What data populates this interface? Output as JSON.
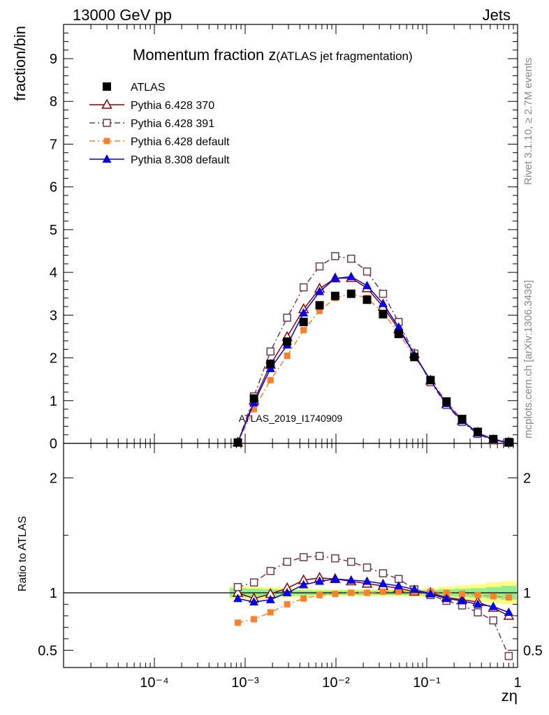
{
  "header": {
    "left": "13000 GeV pp",
    "right": "Jets"
  },
  "side_labels": {
    "rivet": "Rivet 3.1.10, ≥ 2.7M events",
    "mcplots": "mcplots.cern.ch [arXiv:1306.3436]"
  },
  "colors": {
    "atlas": "#000000",
    "p370": "#8b0000",
    "p391": "#6b3a4e",
    "p6def": "#ff7f2a",
    "p8def": "#0000ee",
    "band_inner": "#90ee90",
    "band_outer": "#ffff80"
  },
  "chart_data": {
    "type": "line",
    "x_scale": "log",
    "xlim": [
      1e-05,
      1
    ],
    "xlabel": "zη",
    "x_ticks": [
      {
        "value": 0.0001,
        "label": "10⁻⁴"
      },
      {
        "value": 0.001,
        "label": "10⁻³"
      },
      {
        "value": 0.01,
        "label": "10⁻²"
      },
      {
        "value": 0.1,
        "label": "10⁻¹"
      },
      {
        "value": 1,
        "label": "1"
      }
    ],
    "main": {
      "title": "Momentum fraction z",
      "title_sub": "(ATLAS jet fragmentation)",
      "ylabel": "fraction/bin",
      "ylim": [
        0,
        9.8
      ],
      "y_ticks": [
        0,
        1,
        2,
        3,
        4,
        5,
        6,
        7,
        8,
        9
      ],
      "watermark": "ATLAS_2019_I1740909"
    },
    "ratio": {
      "ylabel": "Ratio to ATLAS",
      "ylim": [
        0.35,
        2.3
      ],
      "y_ticks": [
        {
          "value": 0.5,
          "label": "0.5"
        },
        {
          "value": 1,
          "label": "1"
        },
        {
          "value": 2,
          "label": "2"
        }
      ]
    },
    "x": [
      0.00083,
      0.00125,
      0.0019,
      0.0029,
      0.0044,
      0.0066,
      0.0098,
      0.0147,
      0.022,
      0.033,
      0.049,
      0.073,
      0.11,
      0.165,
      0.245,
      0.365,
      0.54,
      0.8
    ],
    "series": [
      {
        "name": "ATLAS",
        "key": "atlas",
        "marker": "filled-square",
        "line": "none",
        "values": [
          0.02,
          1.05,
          1.86,
          2.38,
          2.84,
          3.23,
          3.45,
          3.5,
          3.36,
          3.02,
          2.56,
          2.02,
          1.48,
          0.98,
          0.57,
          0.27,
          0.1,
          0.03
        ],
        "ratio": [
          1.0,
          1.0,
          1.0,
          1.0,
          1.0,
          1.0,
          1.0,
          1.0,
          1.0,
          1.0,
          1.0,
          1.0,
          1.0,
          1.0,
          1.0,
          1.0,
          1.0,
          1.0
        ],
        "band_inner": [
          0.04,
          0.035,
          0.03,
          0.025,
          0.022,
          0.02,
          0.02,
          0.02,
          0.02,
          0.02,
          0.02,
          0.02,
          0.025,
          0.03,
          0.035,
          0.04,
          0.05,
          0.06
        ],
        "band_outer": [
          0.06,
          0.055,
          0.05,
          0.045,
          0.04,
          0.035,
          0.03,
          0.03,
          0.03,
          0.03,
          0.03,
          0.035,
          0.04,
          0.055,
          0.065,
          0.075,
          0.09,
          0.1
        ]
      },
      {
        "name": "Pythia 6.428 370",
        "key": "p370",
        "marker": "open-triangle",
        "line": "solid",
        "values": [
          0.02,
          1.0,
          1.84,
          2.49,
          3.14,
          3.62,
          3.86,
          3.87,
          3.63,
          3.2,
          2.67,
          2.09,
          1.47,
          0.92,
          0.53,
          0.25,
          0.08,
          0.02
        ],
        "ratio": [
          1.0,
          0.95,
          0.99,
          1.04,
          1.11,
          1.13,
          1.12,
          1.1,
          1.08,
          1.06,
          1.04,
          1.01,
          1.0,
          0.96,
          0.94,
          0.92,
          0.87,
          0.8
        ]
      },
      {
        "name": "Pythia 6.428 391",
        "key": "p391",
        "marker": "open-square",
        "line": "dashdot",
        "values": [
          0.02,
          1.1,
          2.15,
          2.94,
          3.65,
          4.14,
          4.38,
          4.32,
          4.02,
          3.5,
          2.84,
          2.1,
          1.43,
          0.9,
          0.5,
          0.22,
          0.07,
          0.013
        ],
        "ratio": [
          1.05,
          1.09,
          1.19,
          1.27,
          1.31,
          1.32,
          1.3,
          1.27,
          1.22,
          1.17,
          1.12,
          1.03,
          0.98,
          0.93,
          0.89,
          0.83,
          0.76,
          0.45
        ]
      },
      {
        "name": "Pythia 6.428 default",
        "key": "p6def",
        "marker": "filled-square-small",
        "line": "dashdot",
        "values": [
          0.015,
          0.8,
          1.48,
          2.05,
          2.65,
          3.1,
          3.4,
          3.5,
          3.4,
          3.06,
          2.58,
          2.03,
          1.49,
          0.98,
          0.56,
          0.26,
          0.1,
          0.03
        ],
        "ratio": [
          0.74,
          0.77,
          0.83,
          0.9,
          0.95,
          0.98,
          0.99,
          1.0,
          1.0,
          1.01,
          1.01,
          1.01,
          1.01,
          1.0,
          0.99,
          0.98,
          0.97,
          0.96
        ]
      },
      {
        "name": "Pythia 8.308 default",
        "key": "p8def",
        "marker": "filled-triangle",
        "line": "solid",
        "values": [
          0.02,
          0.95,
          1.75,
          2.3,
          3.05,
          3.55,
          3.86,
          3.9,
          3.69,
          3.27,
          2.72,
          2.07,
          1.47,
          0.93,
          0.53,
          0.24,
          0.09,
          0.02
        ],
        "ratio": [
          0.95,
          0.92,
          0.94,
          1.0,
          1.07,
          1.1,
          1.12,
          1.11,
          1.1,
          1.08,
          1.06,
          1.03,
          0.99,
          0.95,
          0.93,
          0.9,
          0.88,
          0.83
        ]
      }
    ]
  }
}
